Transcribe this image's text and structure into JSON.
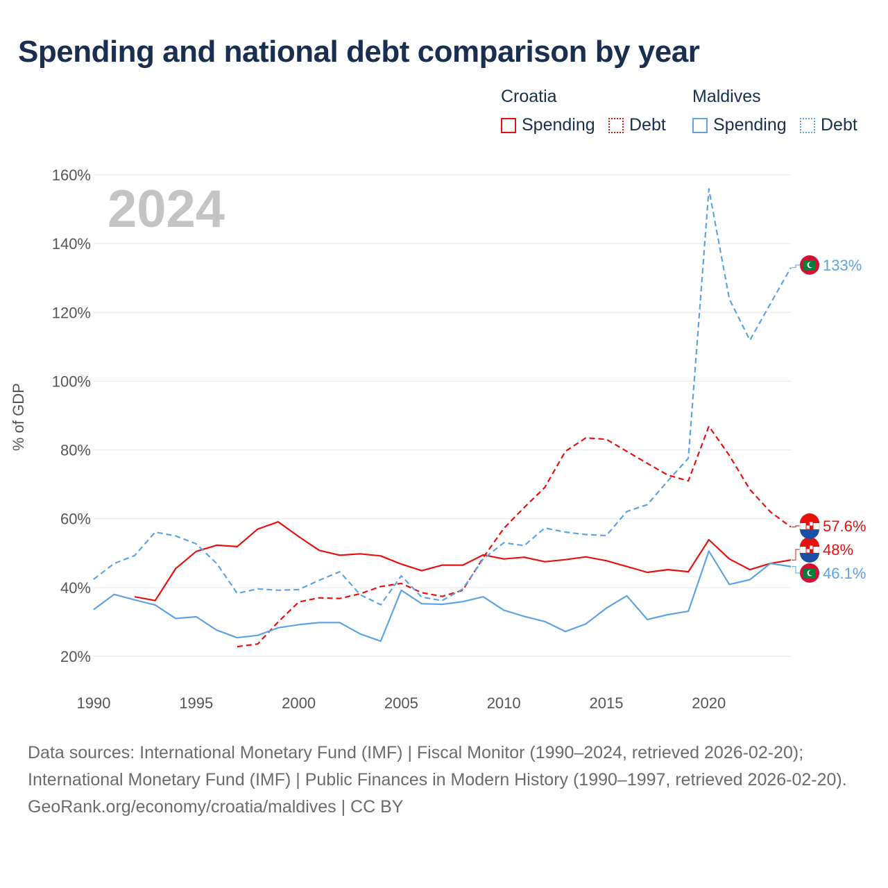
{
  "title": "Spending and national debt comparison by year",
  "legend": {
    "croatia": {
      "label": "Croatia",
      "spending": "Spending",
      "debt": "Debt",
      "color": "#e8100f"
    },
    "maldives": {
      "label": "Maldives",
      "spending": "Spending",
      "debt": "Debt",
      "color": "#5ca3e6"
    }
  },
  "year_watermark": "2024",
  "footer": {
    "sources": "Data sources: International Monetary Fund (IMF) | Fiscal Monitor (1990–2024, retrieved 2026-02-20); International Monetary Fund (IMF) | Public Finances in Modern History (1990–1997, retrieved 2026-02-20).",
    "credit": "GeoRank.org/economy/croatia/maldives | CC BY"
  },
  "chart_data": {
    "type": "line",
    "ylabel": "% of GDP",
    "xlabel": "",
    "xlim": [
      1990,
      2024
    ],
    "ylim": [
      10,
      165
    ],
    "yticks": [
      20,
      40,
      60,
      80,
      100,
      120,
      140,
      160
    ],
    "ytick_labels": [
      "20%",
      "40%",
      "60%",
      "80%",
      "100%",
      "120%",
      "140%",
      "160%"
    ],
    "xticks": [
      1990,
      1995,
      2000,
      2005,
      2010,
      2015,
      2020
    ],
    "xtick_labels": [
      "1990",
      "1995",
      "2000",
      "2005",
      "2010",
      "2015",
      "2020"
    ],
    "grid": true,
    "series": [
      {
        "name": "Croatia Spending",
        "country": "croatia",
        "style": "solid",
        "color": "#e8100f",
        "x": [
          1992,
          1993,
          1994,
          1995,
          1996,
          1997,
          1998,
          1999,
          2000,
          2001,
          2002,
          2003,
          2004,
          2005,
          2006,
          2007,
          2008,
          2009,
          2010,
          2011,
          2012,
          2013,
          2014,
          2015,
          2016,
          2017,
          2018,
          2019,
          2020,
          2021,
          2022,
          2023,
          2024
        ],
        "values": [
          37.3,
          36.2,
          45.5,
          50.5,
          52.3,
          51.9,
          57.0,
          59.1,
          54.8,
          50.8,
          49.4,
          49.8,
          49.2,
          46.8,
          44.9,
          46.5,
          46.5,
          49.5,
          48.3,
          48.8,
          47.5,
          48.1,
          48.9,
          47.8,
          46.1,
          44.4,
          45.2,
          44.6,
          53.9,
          48.3,
          45.2,
          47.0,
          48.0
        ],
        "end_label": "48%"
      },
      {
        "name": "Croatia Debt",
        "country": "croatia",
        "style": "dashed",
        "color": "#e8100f",
        "x": [
          1997,
          1998,
          1999,
          2000,
          2001,
          2002,
          2003,
          2004,
          2005,
          2006,
          2007,
          2008,
          2009,
          2010,
          2011,
          2012,
          2013,
          2014,
          2015,
          2016,
          2017,
          2018,
          2019,
          2020,
          2021,
          2022,
          2023,
          2024
        ],
        "values": [
          22.8,
          23.6,
          30.0,
          35.8,
          37.0,
          36.8,
          38.2,
          40.3,
          41.2,
          38.5,
          37.4,
          39.2,
          48.7,
          57.2,
          63.3,
          69.1,
          79.6,
          83.5,
          83.1,
          79.6,
          76.1,
          72.7,
          71.0,
          86.9,
          78.4,
          68.5,
          62.0,
          57.6
        ],
        "end_label": "57.6%"
      },
      {
        "name": "Maldives Spending",
        "country": "maldives",
        "style": "solid",
        "color": "#5ca3e6",
        "x": [
          1990,
          1991,
          1992,
          1993,
          1994,
          1995,
          1996,
          1997,
          1998,
          1999,
          2000,
          2001,
          2002,
          2003,
          2004,
          2005,
          2006,
          2007,
          2008,
          2009,
          2010,
          2011,
          2012,
          2013,
          2014,
          2015,
          2016,
          2017,
          2018,
          2019,
          2020,
          2021,
          2022,
          2023,
          2024
        ],
        "values": [
          33.6,
          38.0,
          36.4,
          34.9,
          31.0,
          31.5,
          27.6,
          25.4,
          26.1,
          28.3,
          29.2,
          29.8,
          29.8,
          26.5,
          24.4,
          39.2,
          35.3,
          35.1,
          35.9,
          37.3,
          33.4,
          31.6,
          30.1,
          27.2,
          29.4,
          34.0,
          37.6,
          30.7,
          32.1,
          33.1,
          50.6,
          40.9,
          42.3,
          47.0,
          46.1
        ],
        "end_label": "46.1%"
      },
      {
        "name": "Maldives Debt",
        "country": "maldives",
        "style": "dashed",
        "color": "#5ca3e6",
        "x": [
          1990,
          1991,
          1992,
          1993,
          1994,
          1995,
          1996,
          1997,
          1998,
          1999,
          2000,
          2001,
          2002,
          2003,
          2004,
          2005,
          2006,
          2007,
          2008,
          2009,
          2010,
          2011,
          2012,
          2013,
          2014,
          2015,
          2016,
          2017,
          2018,
          2019,
          2020,
          2021,
          2022,
          2023,
          2024
        ],
        "values": [
          42.4,
          47.0,
          49.3,
          56.1,
          55.0,
          52.7,
          47.0,
          38.3,
          39.6,
          39.2,
          39.4,
          42.1,
          44.6,
          37.9,
          35.0,
          43.4,
          37.2,
          36.2,
          39.6,
          48.3,
          53.0,
          52.2,
          57.3,
          56.1,
          55.4,
          55.1,
          62.1,
          64.1,
          71.0,
          77.6,
          155.9,
          123.9,
          111.9,
          122.5,
          133.0
        ],
        "end_label": "133%"
      }
    ]
  }
}
